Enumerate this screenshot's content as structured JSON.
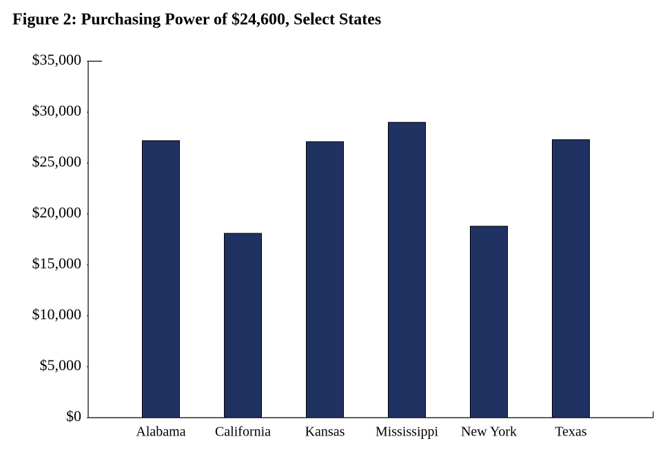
{
  "chart_data": {
    "type": "bar",
    "title": "Figure 2: Purchasing Power of $24,600, Select States",
    "categories": [
      "Alabama",
      "California",
      "Kansas",
      "Mississippi",
      "New York",
      "Texas"
    ],
    "values": [
      27200,
      18100,
      27100,
      29000,
      18800,
      27300
    ],
    "color": "#1f3262",
    "ylim": [
      0,
      35000
    ],
    "yticks": [
      {
        "value": 0,
        "label": "$0"
      },
      {
        "value": 5000,
        "label": "$5,000"
      },
      {
        "value": 10000,
        "label": "$10,000"
      },
      {
        "value": 15000,
        "label": "$15,000"
      },
      {
        "value": 20000,
        "label": "$20,000"
      },
      {
        "value": 25000,
        "label": "$25,000"
      },
      {
        "value": 30000,
        "label": "$30,000"
      },
      {
        "value": 35000,
        "label": "$35,000"
      }
    ],
    "grid": false
  }
}
